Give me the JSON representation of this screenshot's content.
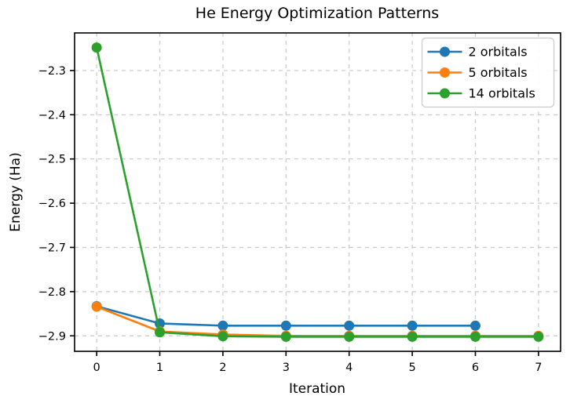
{
  "chart_data": {
    "type": "line",
    "title": "He Energy Optimization Patterns",
    "xlabel": "Iteration",
    "ylabel": "Energy (Ha)",
    "xlim": [
      -0.35,
      7.35
    ],
    "ylim": [
      -2.935,
      -2.215
    ],
    "xticks": [
      0,
      1,
      2,
      3,
      4,
      5,
      6,
      7
    ],
    "xtick_labels": [
      "0",
      "1",
      "2",
      "3",
      "4",
      "5",
      "6",
      "7"
    ],
    "yticks": [
      -2.3,
      -2.4,
      -2.5,
      -2.6,
      -2.7,
      -2.8,
      -2.9
    ],
    "ytick_labels": [
      "−2.3",
      "−2.4",
      "−2.5",
      "−2.6",
      "−2.7",
      "−2.8",
      "−2.9"
    ],
    "grid": true,
    "grid_style": "dashed",
    "grid_color": "#c8c8c8",
    "legend_position": "upper right",
    "series": [
      {
        "name": "2 orbitals",
        "color": "#1f77b4",
        "x": [
          0,
          1,
          2,
          3,
          4,
          5,
          6
        ],
        "y": [
          -2.833,
          -2.872,
          -2.877,
          -2.877,
          -2.877,
          -2.877,
          -2.877
        ]
      },
      {
        "name": "5 orbitals",
        "color": "#ff7f0e",
        "x": [
          0,
          1,
          2,
          3,
          4,
          5,
          6,
          7
        ],
        "y": [
          -2.834,
          -2.89,
          -2.897,
          -2.9,
          -2.9,
          -2.9,
          -2.9,
          -2.9
        ]
      },
      {
        "name": "14 orbitals",
        "color": "#2ca02c",
        "x": [
          0,
          1,
          2,
          3,
          4,
          5,
          6,
          7
        ],
        "y": [
          -2.248,
          -2.892,
          -2.901,
          -2.902,
          -2.902,
          -2.902,
          -2.902,
          -2.902
        ]
      }
    ]
  }
}
